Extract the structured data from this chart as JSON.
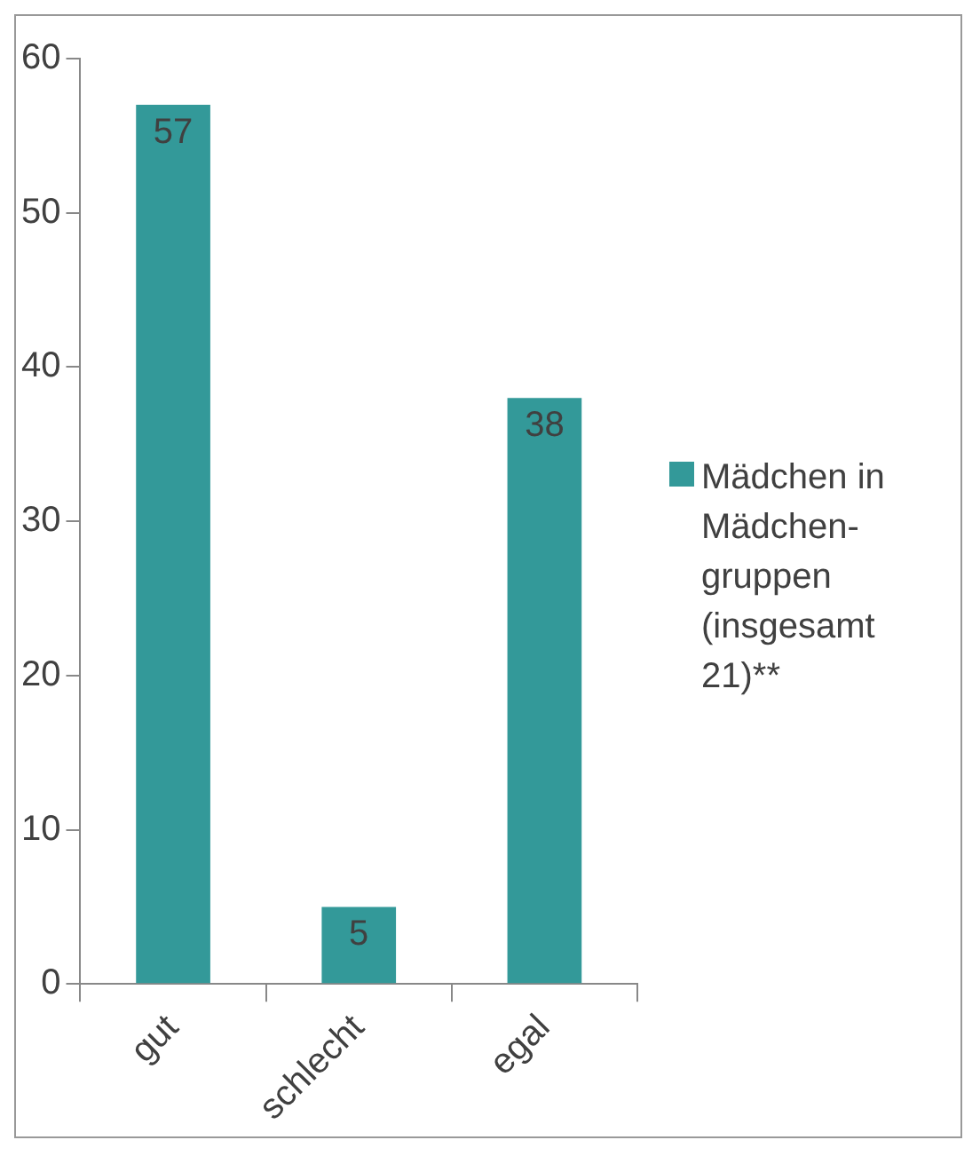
{
  "chart_data": {
    "type": "bar",
    "categories": [
      "gut",
      "schlecht",
      "egal"
    ],
    "series": [
      {
        "name": "Mädchen in Mädchen-gruppen (insgesamt 21)**",
        "color": "#339999",
        "values": [
          57,
          5,
          38
        ]
      }
    ],
    "ylim": [
      0,
      60
    ],
    "yticks": [
      0,
      10,
      20,
      30,
      40,
      50,
      60
    ],
    "grid": false,
    "legend": "right",
    "data_labels": true
  }
}
